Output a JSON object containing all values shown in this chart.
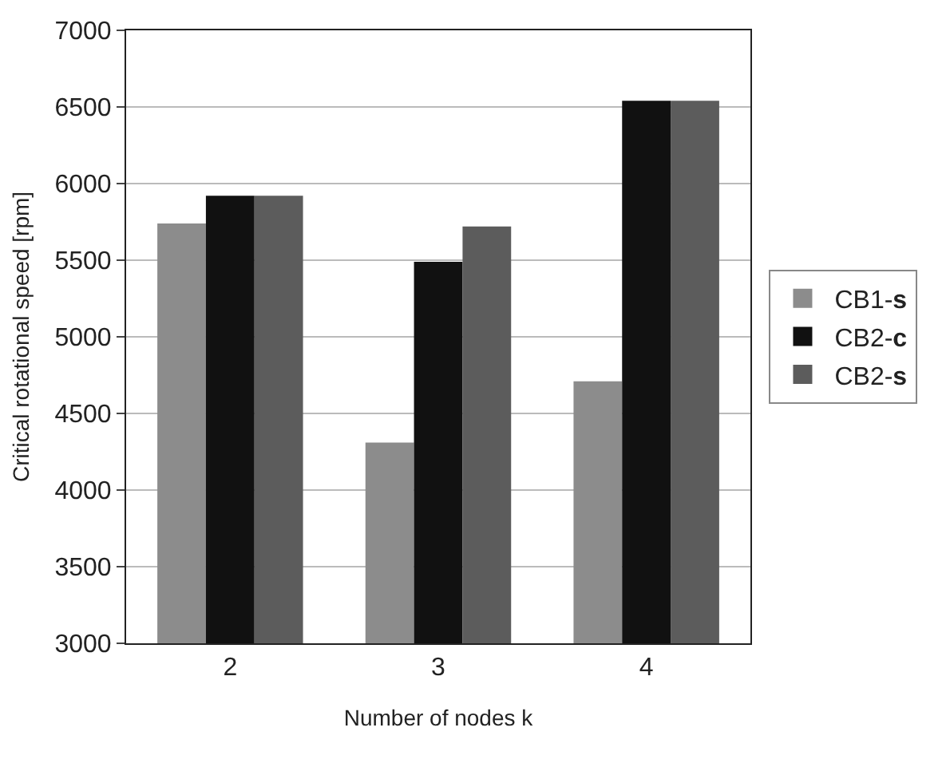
{
  "chart_data": {
    "type": "bar",
    "xlabel": "Number of nodes k",
    "ylabel": "Critical rotational speed [rpm]",
    "categories": [
      "2",
      "3",
      "4"
    ],
    "series": [
      {
        "name": "CB1-s",
        "color": "#8c8c8c",
        "values": [
          5740,
          4310,
          4710
        ]
      },
      {
        "name": "CB2-c",
        "color": "#111111",
        "values": [
          5920,
          5490,
          6540
        ]
      },
      {
        "name": "CB2-s",
        "color": "#5c5c5c",
        "values": [
          5920,
          5720,
          6540
        ]
      }
    ],
    "ylim": [
      3000,
      7000
    ],
    "yticks": [
      3000,
      3500,
      4000,
      4500,
      5000,
      5500,
      6000,
      6500,
      7000
    ],
    "grid": "y",
    "legend": "right"
  }
}
